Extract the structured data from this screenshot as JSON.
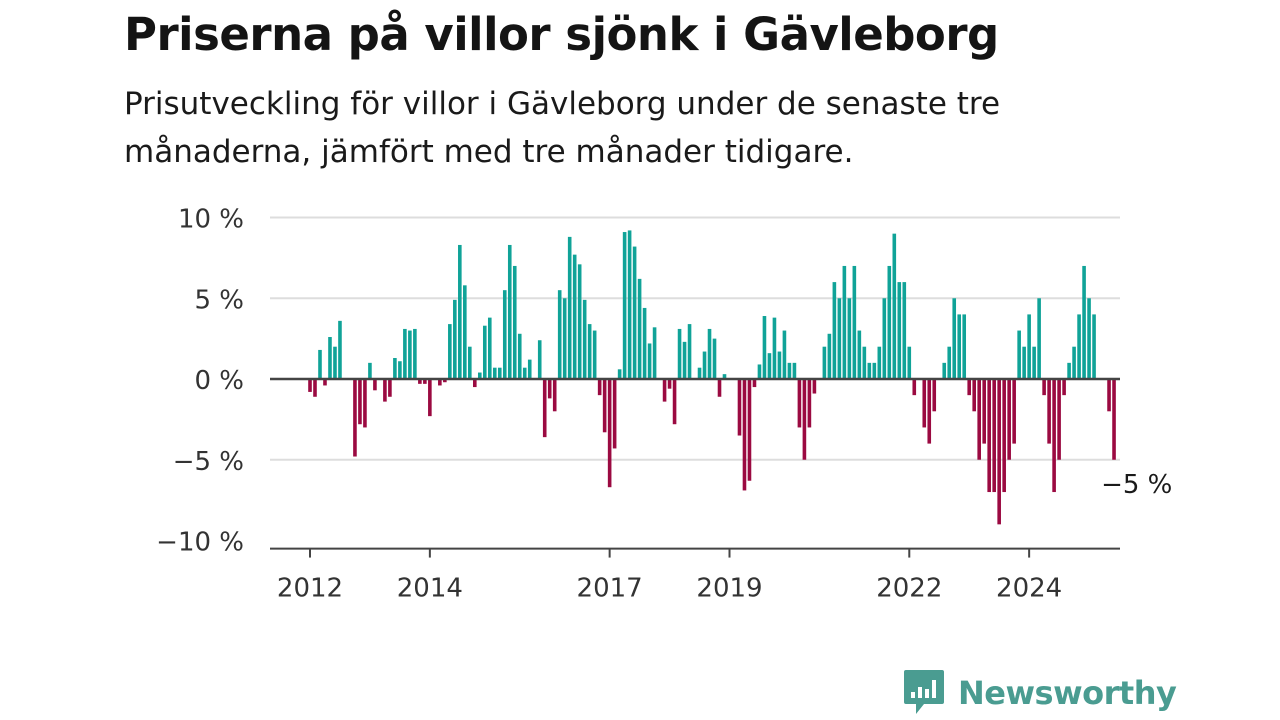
{
  "title": "Priserna på villor sjönk i Gävleborg",
  "subtitle": "Prisutveckling för villor i Gävleborg under de senaste tre månaderna, jämfört med tre månader tidigare.",
  "brand": {
    "name": "Newsworthy",
    "icon": "newsworthy-logo-icon",
    "color": "#4a9c91"
  },
  "colors": {
    "positive": "#10a398",
    "negative": "#9b0a41",
    "grid": "#dddddd",
    "zero_line": "#444444",
    "text": "#333333"
  },
  "chart_data": {
    "type": "bar",
    "title": "Priserna på villor sjönk i Gävleborg",
    "xlabel": "",
    "ylabel": "",
    "ylim": [
      -10.5,
      10
    ],
    "yticks": [
      10,
      5,
      0,
      -5,
      -10
    ],
    "ytick_labels": [
      "10 %",
      "5 %",
      "0 %",
      "−5 %",
      "−10 %"
    ],
    "xticks": [
      "2012",
      "2014",
      "2017",
      "2019",
      "2022",
      "2024"
    ],
    "xtick_months": [
      0,
      24,
      60,
      84,
      120,
      144
    ],
    "start": "2012-01",
    "grid": true,
    "legend": "none",
    "annotation": {
      "text": "−5 %",
      "month_index": 155
    },
    "values": [
      -0.8,
      -1.1,
      1.8,
      -0.4,
      2.6,
      2.0,
      3.6,
      0,
      0,
      -4.8,
      -2.8,
      -3.0,
      1.0,
      -0.7,
      0,
      -1.4,
      -1.1,
      1.3,
      1.1,
      3.1,
      3.0,
      3.1,
      -0.3,
      -0.3,
      -2.3,
      0,
      -0.4,
      -0.2,
      3.4,
      4.9,
      8.3,
      5.8,
      2.0,
      -0.5,
      0.4,
      3.3,
      3.8,
      0.7,
      0.7,
      5.5,
      8.3,
      7.0,
      2.8,
      0.7,
      1.2,
      0,
      2.4,
      -3.6,
      -1.2,
      -2.0,
      5.5,
      5.0,
      8.8,
      7.7,
      7.1,
      4.9,
      3.4,
      3.0,
      -1.0,
      -3.3,
      -6.7,
      -4.3,
      0.6,
      9.1,
      9.2,
      8.2,
      6.2,
      4.4,
      2.2,
      3.2,
      0,
      -1.4,
      -0.6,
      -2.8,
      3.1,
      2.3,
      3.4,
      0,
      0.7,
      1.7,
      3.1,
      2.5,
      -1.1,
      0.3,
      0,
      0,
      -3.5,
      -6.9,
      -6.3,
      -0.5,
      0.9,
      3.9,
      1.6,
      3.8,
      1.7,
      3.0,
      1.0,
      1.0,
      -3.0,
      -5.0,
      -3.0,
      -0.9,
      0,
      2.0,
      2.8,
      6.0,
      5.0,
      7.0,
      5.0,
      7.0,
      3.0,
      2.0,
      1.0,
      1.0,
      2.0,
      5.0,
      7.0,
      9.0,
      6.0,
      6.0,
      2.0,
      -1.0,
      0,
      -3.0,
      -4.0,
      -2.0,
      0,
      1.0,
      2.0,
      5.0,
      4.0,
      4.0,
      -1.0,
      -2.0,
      -5.0,
      -4.0,
      -7.0,
      -7.0,
      -9.0,
      -7.0,
      -5.0,
      -4.0,
      3.0,
      2.0,
      4.0,
      2.0,
      5.0,
      -1.0,
      -4.0,
      -7.0,
      -5.0,
      -1.0,
      1.0,
      2.0,
      4.0,
      7.0,
      5.0,
      4.0,
      0,
      0,
      -2.0,
      -5.0
    ]
  }
}
